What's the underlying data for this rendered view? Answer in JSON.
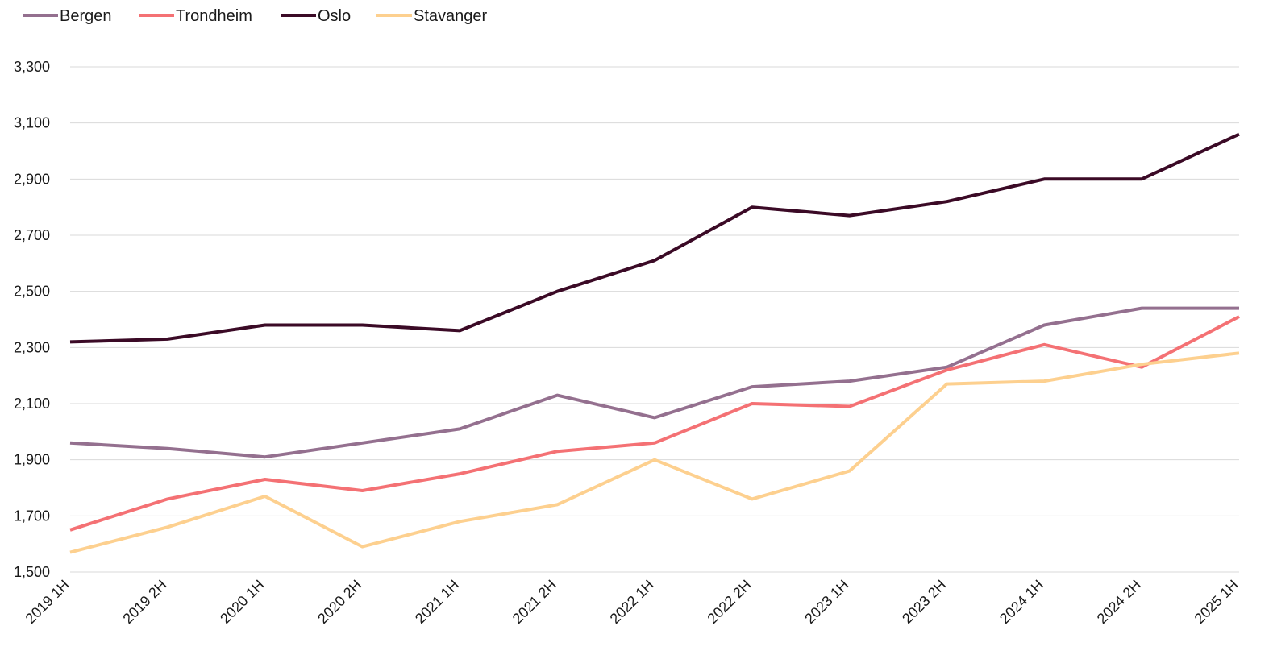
{
  "chart_data": {
    "type": "line",
    "title": "",
    "xlabel": "",
    "ylabel": "",
    "legend_position": "top-left",
    "grid": true,
    "ylim": [
      1500,
      3300
    ],
    "yticks": [
      "1,500",
      "1,700",
      "1,900",
      "2,100",
      "2,300",
      "2,500",
      "2,700",
      "2,900",
      "3,100",
      "3,300"
    ],
    "ytick_values": [
      1500,
      1700,
      1900,
      2100,
      2300,
      2500,
      2700,
      2900,
      3100,
      3300
    ],
    "categories": [
      "2019 1H",
      "2019 2H",
      "2020 1H",
      "2020 2H",
      "2021 1H",
      "2021 2H",
      "2022 1H",
      "2022 2H",
      "2023 1H",
      "2023 2H",
      "2024 1H",
      "2024 2H",
      "2025 1H"
    ],
    "series": [
      {
        "name": "Bergen",
        "color": "#94708f",
        "values": [
          1960,
          1940,
          1910,
          1960,
          2010,
          2130,
          2050,
          2160,
          2180,
          2230,
          2380,
          2440,
          2440
        ]
      },
      {
        "name": "Trondheim",
        "color": "#f47174",
        "values": [
          1650,
          1760,
          1830,
          1790,
          1850,
          1930,
          1960,
          2100,
          2090,
          2220,
          2310,
          2230,
          2410
        ]
      },
      {
        "name": "Oslo",
        "color": "#3b0a26",
        "values": [
          2320,
          2330,
          2380,
          2380,
          2360,
          2500,
          2610,
          2800,
          2770,
          2820,
          2900,
          2900,
          3060
        ]
      },
      {
        "name": "Stavanger",
        "color": "#fdd08f",
        "values": [
          1570,
          1660,
          1770,
          1590,
          1680,
          1740,
          1900,
          1760,
          1860,
          2170,
          2180,
          2240,
          2280
        ]
      }
    ]
  }
}
